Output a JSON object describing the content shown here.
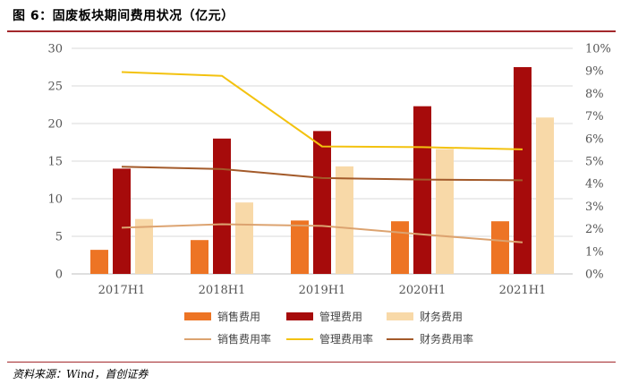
{
  "header": {
    "title": "图 6：固废板块期间费用状况（亿元）"
  },
  "footer": {
    "source": "资料来源：Wind，首创证券"
  },
  "colors": {
    "sales": "#ed7424",
    "admin": "#a60b0b",
    "finance": "#f8d9a8",
    "sales_rate": "#dca370",
    "admin_rate": "#f3c20f",
    "finance_rate": "#a35a2a",
    "grid": "#d9d9d9",
    "title_rule": "#a3282c"
  },
  "chart_data": {
    "type": "bar",
    "categories": [
      "2017H1",
      "2018H1",
      "2019H1",
      "2020H1",
      "2021H1"
    ],
    "y_left": {
      "min": 0,
      "max": 30,
      "step": 5,
      "tick_labels": [
        "0",
        "5",
        "10",
        "15",
        "20",
        "25",
        "30"
      ]
    },
    "y_right": {
      "min": 0,
      "max": 0.1,
      "step": 0.01,
      "tick_labels": [
        "0%",
        "1%",
        "2%",
        "3%",
        "4%",
        "5%",
        "6%",
        "7%",
        "8%",
        "9%",
        "10%"
      ]
    },
    "grid": true,
    "legend_position": "bottom",
    "bar_series": [
      {
        "name": "销售费用",
        "color_key": "sales",
        "values": [
          3.2,
          4.5,
          7.1,
          7.0,
          7.0
        ]
      },
      {
        "name": "管理费用",
        "color_key": "admin",
        "values": [
          14.0,
          18.0,
          19.0,
          22.3,
          27.5
        ]
      },
      {
        "name": "财务费用",
        "color_key": "finance",
        "values": [
          7.3,
          9.5,
          14.3,
          16.6,
          20.8
        ]
      }
    ],
    "line_series": [
      {
        "name": "销售费用率",
        "color_key": "sales_rate",
        "values": [
          0.0205,
          0.022,
          0.0213,
          0.0175,
          0.014
        ]
      },
      {
        "name": "管理费用率",
        "color_key": "admin_rate",
        "values": [
          0.0895,
          0.0878,
          0.0565,
          0.0562,
          0.0552
        ]
      },
      {
        "name": "财务费用率",
        "color_key": "finance_rate",
        "values": [
          0.0475,
          0.0465,
          0.0425,
          0.0418,
          0.0415
        ]
      }
    ]
  }
}
